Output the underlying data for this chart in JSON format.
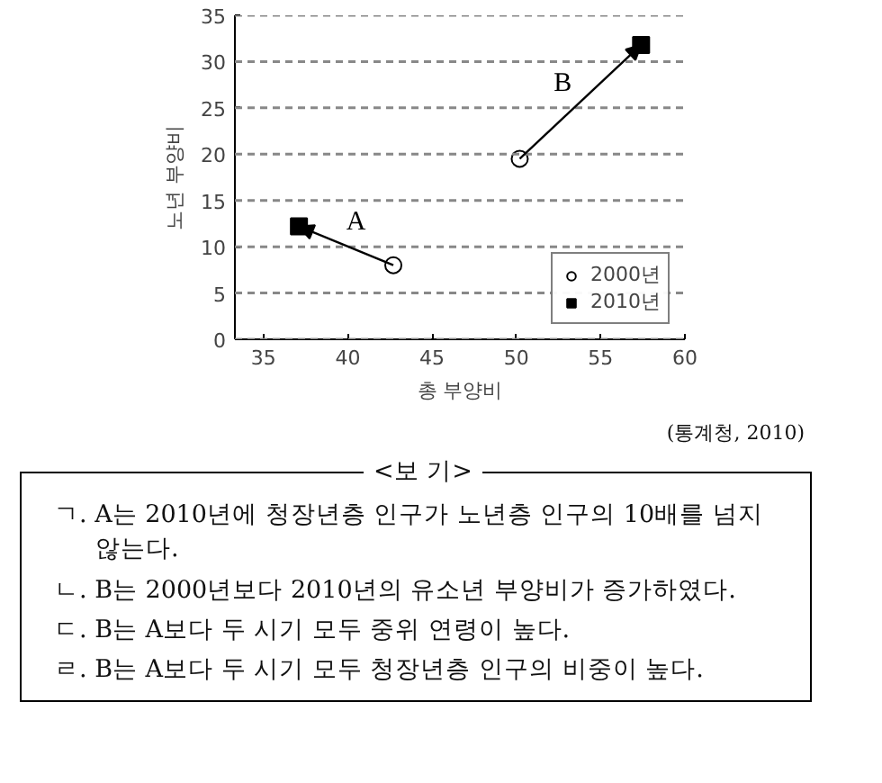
{
  "chart_data": {
    "type": "scatter",
    "xlabel": "총 부양비",
    "ylabel": "노년 부양비",
    "xlim": [
      33.3,
      60
    ],
    "xticks": [
      35,
      40,
      45,
      50,
      55,
      60
    ],
    "ylim": [
      0,
      35
    ],
    "yticks": [
      0,
      5,
      10,
      15,
      20,
      25,
      30,
      35
    ],
    "grid": "y",
    "legend": "bottom right",
    "series": [
      {
        "name": "2000년",
        "color": "#000000",
        "marker": "circle",
        "x": [
          42.7,
          50.2
        ],
        "values": [
          8,
          19.5
        ]
      },
      {
        "name": "2010년",
        "color": "#000000",
        "marker": "square",
        "x": [
          37.1,
          57.4
        ],
        "values": [
          12.2,
          31.8
        ]
      }
    ],
    "annotations": [
      "(통계청, 2010)",
      "<보 기>",
      "ㄱ. A는 2010년에 청장년층 인구가 노년층 인구의 10배를 넘지 않는다.",
      "ㄴ. B는 2000년보다 2010년의 유소년 부양비가 증가하였다.",
      "ㄷ. B는 A보다 두 시기 모두 중위 연령이 높다.",
      "ㄹ. B는 A보다 두 시기 모두 청장년층 인구의 비중이 높다.",
      "A",
      "B"
    ]
  }
}
